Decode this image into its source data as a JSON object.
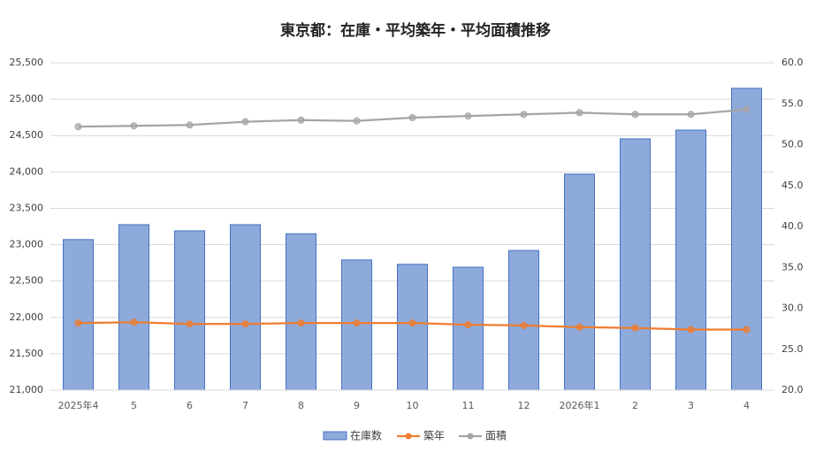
{
  "chart_data": {
    "type": "combo",
    "title": "東京都：在庫・平均築年・平均面積推移",
    "categories": [
      "2025年4",
      "5",
      "6",
      "7",
      "8",
      "9",
      "10",
      "11",
      "12",
      "2026年1",
      "2",
      "3",
      "4"
    ],
    "series": [
      {
        "name": "在庫数",
        "type": "bar",
        "axis": "y",
        "color": "#8eaadb",
        "values": [
          23070,
          23275,
          23190,
          23275,
          23150,
          22790,
          22730,
          22690,
          22920,
          23970,
          24455,
          24575,
          25150
        ]
      },
      {
        "name": "築年",
        "type": "line",
        "axis": "y2",
        "color": "#ed7d31",
        "values": [
          28.2,
          28.3,
          28.1,
          28.1,
          28.2,
          28.2,
          28.2,
          28.0,
          27.9,
          27.7,
          27.6,
          27.4,
          27.4
        ]
      },
      {
        "name": "面積",
        "type": "line",
        "axis": "y2",
        "color": "#a5a5a5",
        "values": [
          52.2,
          52.3,
          52.4,
          52.8,
          53.0,
          52.9,
          53.3,
          53.5,
          53.7,
          53.9,
          53.7,
          53.7,
          54.3
        ]
      }
    ],
    "ylim": [
      21000,
      25500
    ],
    "yticks": [
      {
        "value": 21000,
        "label": "21,000"
      },
      {
        "value": 21500,
        "label": "21,500"
      },
      {
        "value": 22000,
        "label": "22,000"
      },
      {
        "value": 22500,
        "label": "22,500"
      },
      {
        "value": 23000,
        "label": "23,000"
      },
      {
        "value": 23500,
        "label": "23,500"
      },
      {
        "value": 24000,
        "label": "24,000"
      },
      {
        "value": 24500,
        "label": "24,500"
      },
      {
        "value": 25000,
        "label": "25,000"
      },
      {
        "value": 25500,
        "label": "25,500"
      }
    ],
    "y2lim": [
      20,
      60
    ],
    "y2ticks": [
      {
        "value": 20,
        "label": "20.0"
      },
      {
        "value": 25,
        "label": "25.0"
      },
      {
        "value": 30,
        "label": "30.0"
      },
      {
        "value": 35,
        "label": "35.0"
      },
      {
        "value": 40,
        "label": "40.0"
      },
      {
        "value": 45,
        "label": "45.0"
      },
      {
        "value": 50,
        "label": "50.0"
      },
      {
        "value": 55,
        "label": "55.0"
      },
      {
        "value": 60,
        "label": "60.0"
      }
    ],
    "grid": true,
    "legend": "bottom"
  }
}
